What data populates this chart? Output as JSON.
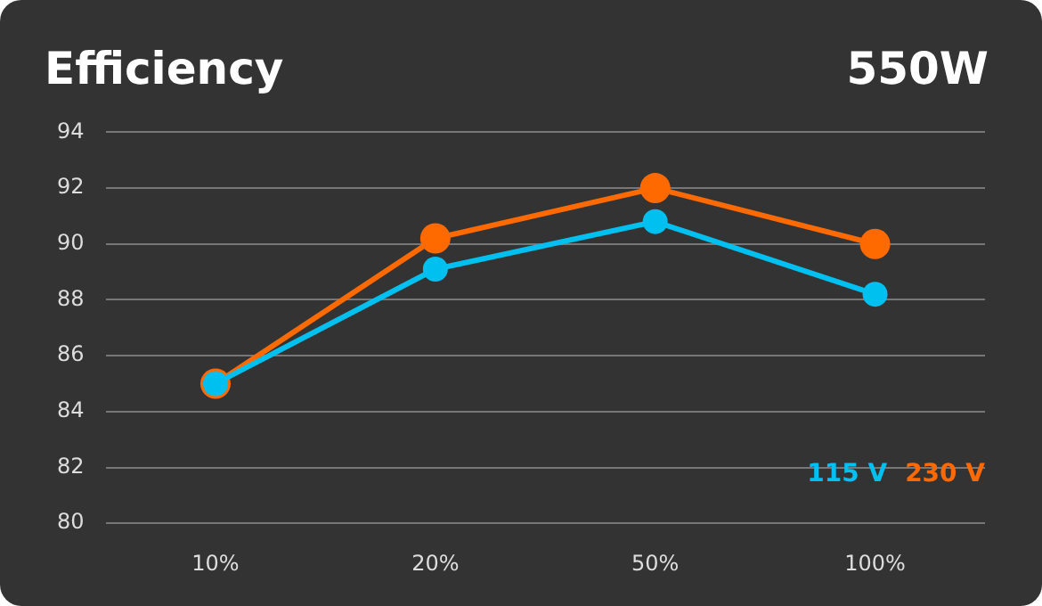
{
  "chart_data": {
    "type": "line",
    "title": "Efficiency",
    "subtitle": "550W",
    "categories": [
      "10%",
      "20%",
      "50%",
      "100%"
    ],
    "series": [
      {
        "name": "115 V",
        "color": "#00c0f0",
        "values": [
          85,
          89.1,
          90.8,
          88.2
        ]
      },
      {
        "name": "230 V",
        "color": "#ff6a00",
        "values": [
          85,
          90.2,
          92.0,
          90.0
        ]
      }
    ],
    "ylim": [
      80,
      94
    ],
    "yticks": [
      80,
      82,
      84,
      86,
      88,
      90,
      92,
      94
    ],
    "grid": "y",
    "legend": "bottom right",
    "marker": "circle",
    "line_style": "solid"
  }
}
